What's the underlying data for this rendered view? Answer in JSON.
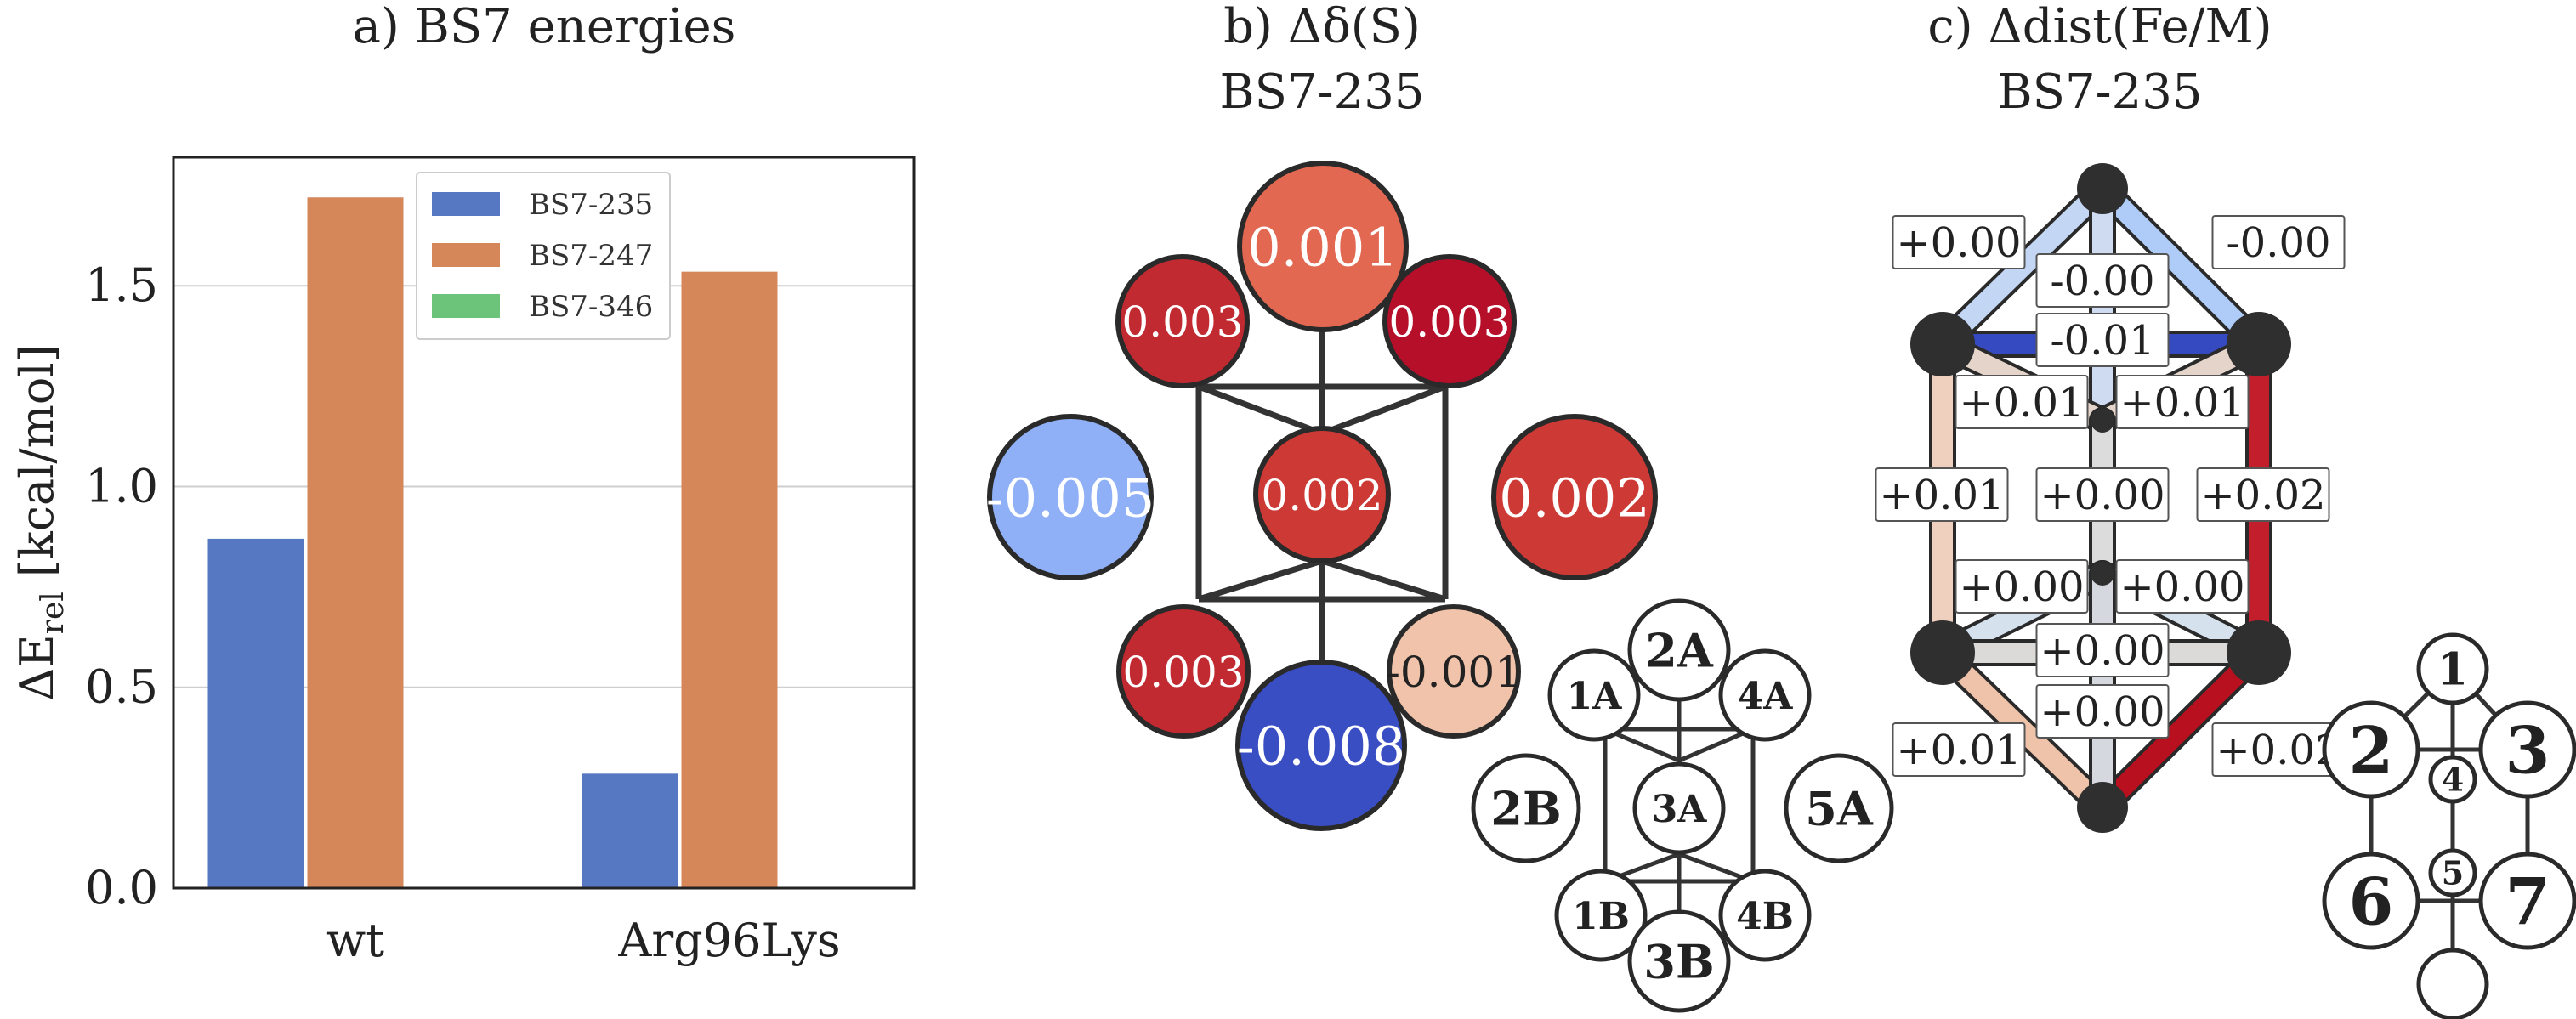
{
  "chart_data": [
    {
      "type": "bar",
      "title": "a) BS7 energies",
      "ylabel": "ΔE_rel [kcal/mol]",
      "ylabel_main": "ΔE",
      "ylabel_sub": "rel",
      "ylabel_unit": " [kcal/mol]",
      "categories": [
        "wt",
        "Arg96Lys"
      ],
      "ylim": [
        0,
        1.82
      ],
      "yticks": [
        "0.0",
        "0.5",
        "1.0",
        "1.5"
      ],
      "ytick_values": [
        0,
        0.5,
        1.0,
        1.5
      ],
      "grid": true,
      "legend": "top-right",
      "series": [
        {
          "name": "BS7-235",
          "color": "#5677c2",
          "values": [
            0.87,
            0.285
          ]
        },
        {
          "name": "BS7-247",
          "color": "#d6875a",
          "values": [
            1.72,
            1.535
          ]
        },
        {
          "name": "BS7-346",
          "color": "#6cc47a",
          "values": [
            0,
            0
          ]
        }
      ]
    },
    {
      "type": "diagram",
      "title_line1": "b) Δδ(S)",
      "title_line2": "BS7-235",
      "nodes": [
        {
          "id": "2A",
          "value": "0.001",
          "color": "#e26852"
        },
        {
          "id": "1A",
          "value": "0.003",
          "color": "#c12a31"
        },
        {
          "id": "4A",
          "value": "0.003",
          "color": "#b50f2a"
        },
        {
          "id": "2B",
          "value": "-0.005",
          "color": "#8fb0f6"
        },
        {
          "id": "3A",
          "value": "0.002",
          "color": "#cd3a35"
        },
        {
          "id": "5A",
          "value": "0.002",
          "color": "#cd3a35"
        },
        {
          "id": "1B",
          "value": "0.003",
          "color": "#c12a31"
        },
        {
          "id": "4B",
          "value": "-0.001",
          "color": "#f0c3aa"
        },
        {
          "id": "3B",
          "value": "-0.008",
          "color": "#3a4ec4"
        }
      ],
      "key": [
        "2A",
        "1A",
        "4A",
        "2B",
        "3A",
        "5A",
        "1B",
        "4B",
        "3B"
      ]
    },
    {
      "type": "diagram",
      "title_line1": "c) Δdist(Fe/M)",
      "title_line2": "BS7-235",
      "edge_labels": [
        "+0.00",
        "-0.00",
        "-0.00",
        "-0.01",
        "+0.01",
        "+0.01",
        "+0.01",
        "+0.00",
        "+0.02",
        "+0.00",
        "+0.00",
        "+0.00",
        "+0.00",
        "+0.01",
        "+0.02"
      ],
      "key": [
        "1",
        "2",
        "3",
        "4",
        "5",
        "6",
        "7"
      ]
    }
  ]
}
